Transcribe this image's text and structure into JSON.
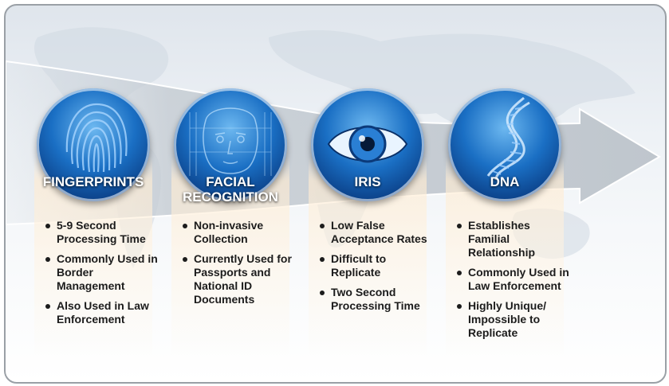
{
  "columns": [
    {
      "title_lines": [
        "FINGERPRINTS"
      ],
      "icon": "fingerprint-icon",
      "bullets": [
        "5-9 Second Processing Time",
        "Commonly Used in Border Management",
        "Also Used in Law Enforcement"
      ]
    },
    {
      "title_lines": [
        "FACIAL",
        "RECOGNITION"
      ],
      "icon": "face-icon",
      "bullets": [
        "Non-invasive Collection",
        "Currently Used for Passports and National ID Documents"
      ]
    },
    {
      "title_lines": [
        "IRIS"
      ],
      "icon": "eye-icon",
      "bullets": [
        "Low False Acceptance Rates",
        "Difficult to Replicate",
        "Two Second Processing Time"
      ]
    },
    {
      "title_lines": [
        "DNA"
      ],
      "icon": "dna-helix-icon",
      "bullets": [
        "Establishes Familial Relationship",
        "Commonly Used in Law Enforcement",
        "Highly Unique/ Impossible to Replicate"
      ]
    }
  ],
  "colors": {
    "circle_blue": "#1a6fc4",
    "arrow_gray": "#c9ced4",
    "text": "#1c1c1c"
  }
}
